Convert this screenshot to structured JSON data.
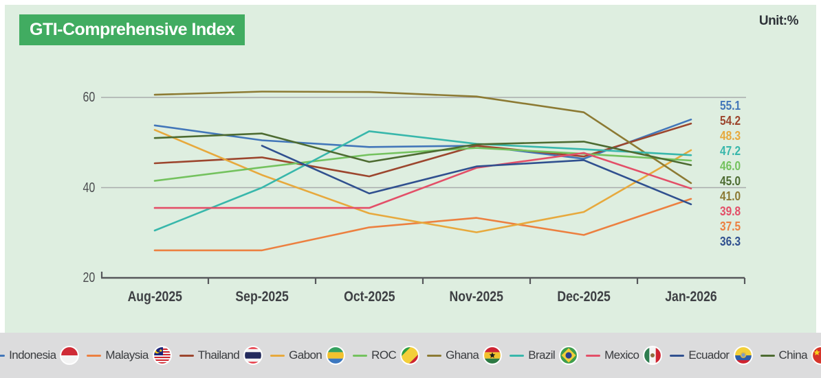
{
  "header": {
    "title": "GTI-Comprehensive Index",
    "unit_label": "Unit:%"
  },
  "chart_data": {
    "type": "line",
    "title": "GTI-Comprehensive Index",
    "unit": "%",
    "legend_position": "bottom",
    "grid": "horizontal",
    "categories": [
      "Aug-2025",
      "Sep-2025",
      "Oct-2025",
      "Nov-2025",
      "Dec-2025",
      "Jan-2026"
    ],
    "y_axis": {
      "min": 20,
      "max": 63,
      "ticks": [
        60,
        40,
        20
      ],
      "gridlines": [
        60,
        40
      ]
    },
    "series": [
      {
        "id": "indonesia",
        "name": "Indonesia",
        "color": "#4276b9",
        "values": [
          53.8,
          50.5,
          49.0,
          49.3,
          46.4,
          55.1
        ],
        "end_label": "55.1"
      },
      {
        "id": "malaysia",
        "name": "Malaysia",
        "color": "#ec8040",
        "values": [
          26.1,
          26.1,
          31.2,
          33.3,
          29.5,
          37.5
        ],
        "end_label": "37.5"
      },
      {
        "id": "thailand",
        "name": "Thailand",
        "color": "#9c462e",
        "values": [
          45.4,
          46.7,
          42.5,
          49.3,
          46.9,
          54.2
        ],
        "end_label": "54.2"
      },
      {
        "id": "gabon",
        "name": "Gabon",
        "color": "#e7a93d",
        "values": [
          52.8,
          42.8,
          34.3,
          30.1,
          34.6,
          48.3
        ],
        "end_label": "48.3"
      },
      {
        "id": "roc",
        "name": "ROC",
        "color": "#74c25e",
        "values": [
          41.5,
          44.5,
          47.3,
          48.8,
          47.5,
          46.0
        ],
        "end_label": "46.0"
      },
      {
        "id": "ghana",
        "name": "Ghana",
        "color": "#8c7a33",
        "values": [
          60.6,
          61.3,
          61.2,
          60.2,
          56.7,
          41.0
        ],
        "end_label": "41.0"
      },
      {
        "id": "brazil",
        "name": "Brazil",
        "color": "#38b7ab",
        "values": [
          30.5,
          40.0,
          52.5,
          49.7,
          48.5,
          47.2
        ],
        "end_label": "47.2"
      },
      {
        "id": "mexico",
        "name": "Mexico",
        "color": "#e34f68",
        "values": [
          35.5,
          35.5,
          35.5,
          44.4,
          47.7,
          39.8
        ],
        "end_label": "39.8"
      },
      {
        "id": "ecuador",
        "name": "Ecuador",
        "color": "#30508f",
        "values": [
          null,
          49.3,
          38.7,
          44.7,
          46.1,
          36.3
        ],
        "end_label": "36.3"
      },
      {
        "id": "china",
        "name": "China",
        "color": "#4d6b31",
        "values": [
          51.0,
          52.0,
          45.7,
          49.6,
          50.2,
          45.0
        ],
        "end_label": "45.0"
      }
    ]
  },
  "colors": {
    "panel_background": "#deeee0",
    "title_background": "#41ac61",
    "legend_background": "#dcdcdd",
    "gridline": "#a9abac",
    "axis": "#56575b"
  }
}
